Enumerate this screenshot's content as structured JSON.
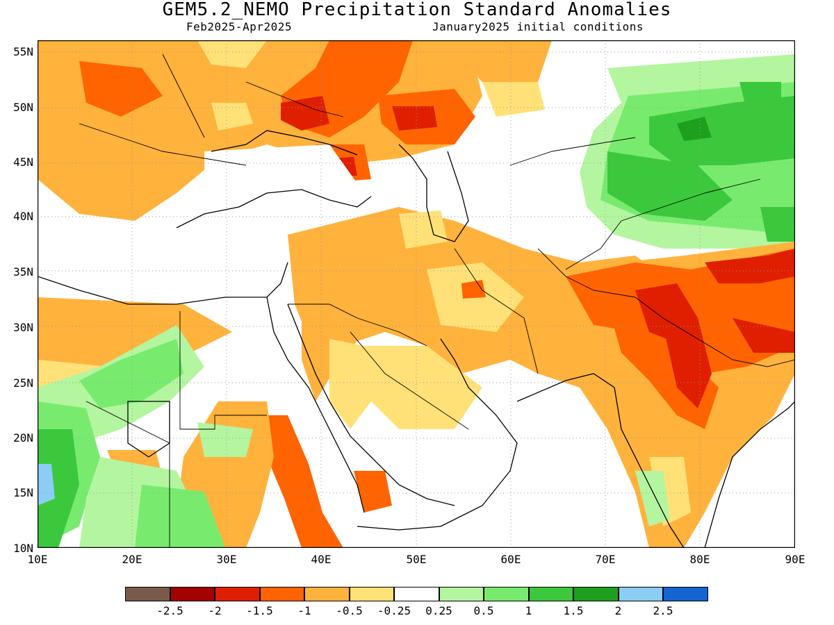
{
  "title": "GEM5.2_NEMO Precipitation Standard Anomalies",
  "subtitle_left": "Feb2025-Apr2025",
  "subtitle_right": "January2025 initial conditions",
  "lat_labels": [
    "55N",
    "50N",
    "45N",
    "40N",
    "35N",
    "30N",
    "25N",
    "20N",
    "15N",
    "10N"
  ],
  "lon_labels": [
    "10E",
    "20E",
    "30E",
    "40E",
    "50E",
    "60E",
    "70E",
    "80E",
    "90E"
  ],
  "colorbar": {
    "colors": [
      "#7a5a4a",
      "#a50000",
      "#e01e00",
      "#ff6400",
      "#ffb23c",
      "#ffe178",
      "#ffffff",
      "#b4f5a0",
      "#78eb6e",
      "#3cc83c",
      "#1ea01e",
      "#8ccdf5",
      "#1464d2"
    ],
    "labels": [
      "-2.5",
      "-2",
      "-1.5",
      "-1",
      "-0.5",
      "-0.25",
      "0.25",
      "0.5",
      "1",
      "1.5",
      "2",
      "2.5"
    ]
  },
  "colors": {
    "light_orange": "#ffb23c",
    "yellow": "#ffe178",
    "orange": "#ff6400",
    "red": "#e01e00",
    "light_green": "#b4f5a0",
    "green": "#78eb6e",
    "mid_green": "#3cc83c",
    "dark_green": "#1ea01e",
    "light_blue": "#8ccdf5"
  }
}
